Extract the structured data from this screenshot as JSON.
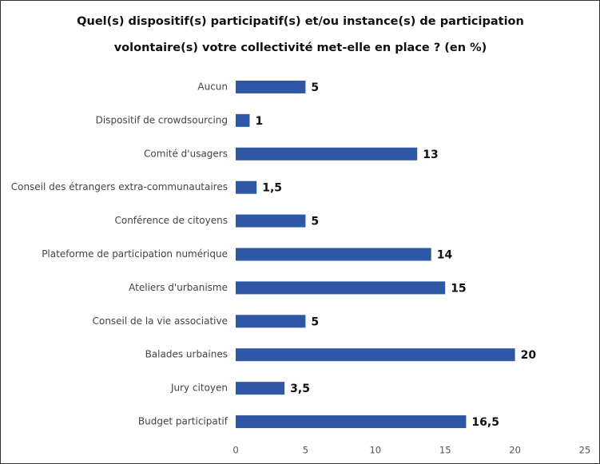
{
  "chart_data": {
    "type": "bar",
    "orientation": "horizontal",
    "title": "Quel(s) dispositif(s) participatif(s) et/ou instance(s) de participation volontaire(s) votre collectivité met-elle en place ? (en %)",
    "categories": [
      "Aucun",
      "Dispositif de crowdsourcing",
      "Comité d'usagers",
      "Conseil des étrangers extra-communautaires",
      "Conférence de citoyens",
      "Plateforme de participation numérique",
      "Ateliers d'urbanisme",
      "Conseil de la vie associative",
      "Balades urbaines",
      "Jury citoyen",
      "Budget participatif"
    ],
    "values": [
      5,
      1,
      13,
      1.5,
      5,
      14,
      15,
      5,
      20,
      3.5,
      16.5
    ],
    "value_labels": [
      "5",
      "1",
      "13",
      "1,5",
      "5",
      "14",
      "15",
      "5",
      "20",
      "3,5",
      "16,5"
    ],
    "color": "#2e58a6",
    "xlim": [
      0,
      25
    ],
    "xticks": [
      0,
      5,
      10,
      15,
      20,
      25
    ]
  }
}
